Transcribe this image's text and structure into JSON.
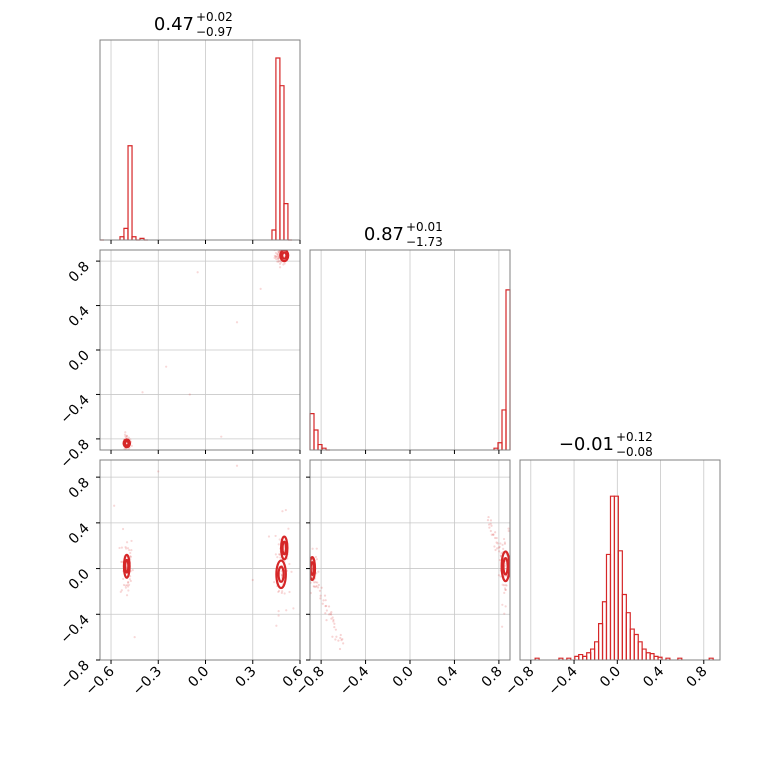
{
  "chart_data": [
    {
      "type": "histogram",
      "panel": "diag-1",
      "title": {
        "median": "0.47",
        "plus": "+0.02",
        "minus": "−0.97"
      },
      "xlim": [
        -0.67,
        0.6
      ],
      "bin_width": 0.0254,
      "bins": [
        {
          "x": -0.67,
          "h": 0.0
        },
        {
          "x": -0.543,
          "h": 0.018
        },
        {
          "x": -0.518,
          "h": 0.064
        },
        {
          "x": -0.492,
          "h": 0.518
        },
        {
          "x": -0.467,
          "h": 0.018
        },
        {
          "x": -0.442,
          "h": 0.0
        },
        {
          "x": -0.416,
          "h": 0.009
        },
        {
          "x": -0.391,
          "h": 0.0
        },
        {
          "x": 0.422,
          "h": 0.055
        },
        {
          "x": 0.447,
          "h": 1.0
        },
        {
          "x": 0.473,
          "h": 0.848
        },
        {
          "x": 0.498,
          "h": 0.2
        },
        {
          "x": 0.524,
          "h": 0.0
        }
      ],
      "grid": true,
      "color": "#d62728"
    },
    {
      "type": "histogram",
      "panel": "diag-2",
      "title": {
        "median": "0.87",
        "plus": "+0.01",
        "minus": "−1.73"
      },
      "xlim": [
        -0.9,
        0.9
      ],
      "bin_width": 0.036,
      "bins": [
        {
          "x": -0.9,
          "h": 0.2
        },
        {
          "x": -0.864,
          "h": 0.11
        },
        {
          "x": -0.828,
          "h": 0.03
        },
        {
          "x": -0.792,
          "h": 0.01
        },
        {
          "x": -0.756,
          "h": 0.0
        },
        {
          "x": 0.756,
          "h": 0.01
        },
        {
          "x": 0.792,
          "h": 0.04
        },
        {
          "x": 0.828,
          "h": 0.22
        },
        {
          "x": 0.864,
          "h": 0.88
        }
      ],
      "grid": true,
      "color": "#d62728"
    },
    {
      "type": "histogram",
      "panel": "diag-3",
      "title": {
        "median": "−0.01",
        "plus": "+0.12",
        "minus": "−0.08"
      },
      "xlim": [
        -0.9,
        0.95
      ],
      "bin_width": 0.0367,
      "bins": [
        {
          "x": -0.76,
          "h": 0.01
        },
        {
          "x": -0.54,
          "h": 0.01
        },
        {
          "x": -0.467,
          "h": 0.01
        },
        {
          "x": -0.393,
          "h": 0.02
        },
        {
          "x": -0.357,
          "h": 0.03
        },
        {
          "x": -0.32,
          "h": 0.02
        },
        {
          "x": -0.283,
          "h": 0.04
        },
        {
          "x": -0.247,
          "h": 0.06
        },
        {
          "x": -0.21,
          "h": 0.1
        },
        {
          "x": -0.173,
          "h": 0.2
        },
        {
          "x": -0.137,
          "h": 0.32
        },
        {
          "x": -0.1,
          "h": 0.58
        },
        {
          "x": -0.063,
          "h": 0.9
        },
        {
          "x": -0.027,
          "h": 0.9
        },
        {
          "x": 0.01,
          "h": 0.6
        },
        {
          "x": 0.047,
          "h": 0.36
        },
        {
          "x": 0.083,
          "h": 0.26
        },
        {
          "x": 0.12,
          "h": 0.17
        },
        {
          "x": 0.157,
          "h": 0.14
        },
        {
          "x": 0.193,
          "h": 0.1
        },
        {
          "x": 0.23,
          "h": 0.06
        },
        {
          "x": 0.267,
          "h": 0.04
        },
        {
          "x": 0.303,
          "h": 0.035
        },
        {
          "x": 0.34,
          "h": 0.02
        },
        {
          "x": 0.377,
          "h": 0.015
        },
        {
          "x": 0.45,
          "h": 0.01
        },
        {
          "x": 0.56,
          "h": 0.01
        },
        {
          "x": 0.85,
          "h": 0.01
        }
      ],
      "grid": true,
      "color": "#d62728"
    },
    {
      "type": "scatter",
      "panel": "pair-2-1",
      "xlim": [
        -0.67,
        0.6
      ],
      "ylim": [
        -0.9,
        0.9
      ],
      "clusters": [
        {
          "cx": 0.48,
          "cy": 0.85,
          "sx": 0.02,
          "sy": 0.04,
          "n": 60
        },
        {
          "cx": -0.5,
          "cy": -0.84,
          "sx": 0.015,
          "sy": 0.04,
          "n": 35
        }
      ],
      "stray_points": [
        [
          -0.4,
          -0.38
        ],
        [
          -0.1,
          -0.4
        ],
        [
          0.2,
          0.25
        ],
        [
          -0.05,
          0.7
        ],
        [
          0.1,
          -0.78
        ],
        [
          -0.25,
          -0.15
        ],
        [
          0.35,
          0.55
        ]
      ],
      "contours": [
        {
          "cx": 0.5,
          "cy": 0.85,
          "rx": 0.025,
          "ry": 0.05
        },
        {
          "cx": -0.5,
          "cy": -0.84,
          "rx": 0.02,
          "ry": 0.035
        }
      ],
      "grid": true,
      "color": "#d62728"
    },
    {
      "type": "scatter",
      "panel": "pair-3-1",
      "xlim": [
        -0.67,
        0.6
      ],
      "ylim": [
        -0.8,
        0.95
      ],
      "clusters": [
        {
          "cx": -0.5,
          "cy": 0.02,
          "sx": 0.02,
          "sy": 0.15,
          "n": 50
        },
        {
          "cx": 0.49,
          "cy": 0.05,
          "sx": 0.025,
          "sy": 0.2,
          "n": 60
        }
      ],
      "stray_points": [
        [
          -0.45,
          -0.6
        ],
        [
          -0.3,
          0.85
        ],
        [
          0.45,
          -0.5
        ],
        [
          0.2,
          0.9
        ],
        [
          -0.58,
          0.55
        ],
        [
          0.3,
          -0.1
        ]
      ],
      "contours": [
        {
          "cx": -0.5,
          "cy": 0.02,
          "rx": 0.018,
          "ry": 0.1
        },
        {
          "cx": 0.48,
          "cy": -0.05,
          "rx": 0.03,
          "ry": 0.12
        },
        {
          "cx": 0.5,
          "cy": 0.18,
          "rx": 0.02,
          "ry": 0.1
        }
      ],
      "grid": true,
      "color": "#d62728"
    },
    {
      "type": "scatter",
      "panel": "pair-3-2",
      "xlim": [
        -0.9,
        0.9
      ],
      "ylim": [
        -0.8,
        0.95
      ],
      "clusters": [
        {
          "cx": -0.88,
          "cy": 0.0,
          "sx": 0.02,
          "sy": 0.1,
          "n": 40
        },
        {
          "cx": 0.86,
          "cy": 0.0,
          "sx": 0.03,
          "sy": 0.15,
          "n": 50
        }
      ],
      "arcs": [
        {
          "x0": -0.88,
          "y0": -0.05,
          "x1": -0.6,
          "y1": -0.7,
          "n": 45
        },
        {
          "x0": 0.7,
          "y0": 0.45,
          "x1": 0.86,
          "y1": 0.0,
          "n": 30
        }
      ],
      "contours": [
        {
          "cx": -0.88,
          "cy": 0.0,
          "rx": 0.025,
          "ry": 0.1
        },
        {
          "cx": 0.86,
          "cy": 0.02,
          "rx": 0.035,
          "ry": 0.13
        }
      ],
      "grid": true,
      "color": "#d62728"
    }
  ],
  "axes": {
    "col1_xticks": [
      "−0.6",
      "−0.3",
      "0.0",
      "0.3",
      "0.6"
    ],
    "col1_xtick_values": [
      -0.6,
      -0.3,
      0.0,
      0.3,
      0.6
    ],
    "col2_xticks": [
      "−0.8",
      "−0.4",
      "0.0",
      "0.4",
      "0.8"
    ],
    "col2_xtick_values": [
      -0.8,
      -0.4,
      0.0,
      0.4,
      0.8
    ],
    "col3_xticks": [
      "−0.8",
      "−0.4",
      "0.0",
      "0.4",
      "0.8"
    ],
    "col3_xtick_values": [
      -0.8,
      -0.4,
      0.0,
      0.4,
      0.8
    ],
    "row2_yticks": [
      "−0.8",
      "−0.4",
      "0.0",
      "0.4",
      "0.8"
    ],
    "row2_ytick_values": [
      -0.8,
      -0.4,
      0.0,
      0.4,
      0.8
    ],
    "row3_yticks": [
      "−0.8",
      "−0.4",
      "0.0",
      "0.4",
      "0.8"
    ],
    "row3_ytick_values": [
      -0.8,
      -0.4,
      0.0,
      0.4,
      0.8
    ]
  }
}
